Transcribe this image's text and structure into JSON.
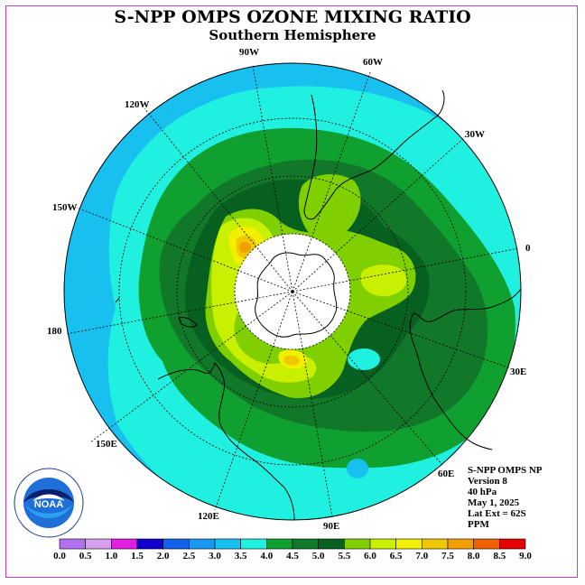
{
  "title": "S-NPP OMPS OZONE MIXING RATIO",
  "subtitle": "Southern Hemisphere",
  "longitude_labels": {
    "lon_90w": "90W",
    "lon_60w": "60W",
    "lon_30w": "30W",
    "lon_0": "0",
    "lon_30e": "30E",
    "lon_60e": "60E",
    "lon_90e": "90E",
    "lon_120e": "120E",
    "lon_150e": "150E",
    "lon_180": "180",
    "lon_150w": "150W",
    "lon_120w": "120W"
  },
  "info": {
    "instrument": "S-NPP OMPS NP",
    "version": "Version 8",
    "level": "40 hPa",
    "date": "May 1, 2025",
    "lat_ext": "Lat Ext = 62S",
    "units": "PPM"
  },
  "logo": {
    "text": "NOAA"
  },
  "colorbar": {
    "ticks": [
      "0.0",
      "0.5",
      "1.0",
      "1.5",
      "2.0",
      "2.5",
      "3.0",
      "3.5",
      "4.0",
      "4.5",
      "5.0",
      "5.5",
      "6.0",
      "6.5",
      "7.0",
      "7.5",
      "8.0",
      "8.5",
      "9.0"
    ],
    "colors": [
      "#b070f0",
      "#d8a0f0",
      "#e020e0",
      "#1000d0",
      "#1060e8",
      "#1898f0",
      "#18c0f0",
      "#20f0e0",
      "#10a030",
      "#107828",
      "#086020",
      "#80d000",
      "#c8f000",
      "#f0f000",
      "#f0c800",
      "#f0a000",
      "#f06000",
      "#e80000",
      "#8c5030"
    ]
  },
  "map_colors": {
    "c3_0": "#18c0f0",
    "c3_5": "#20f0e0",
    "c4_0": "#10a030",
    "c4_5": "#107828",
    "c5_0": "#086020",
    "c5_5": "#80d000",
    "c6_0": "#c8f000",
    "c6_5": "#f0f000",
    "c7_0": "#f0c800",
    "c7_5": "#f0a000",
    "polar_night": "#ffffff"
  }
}
